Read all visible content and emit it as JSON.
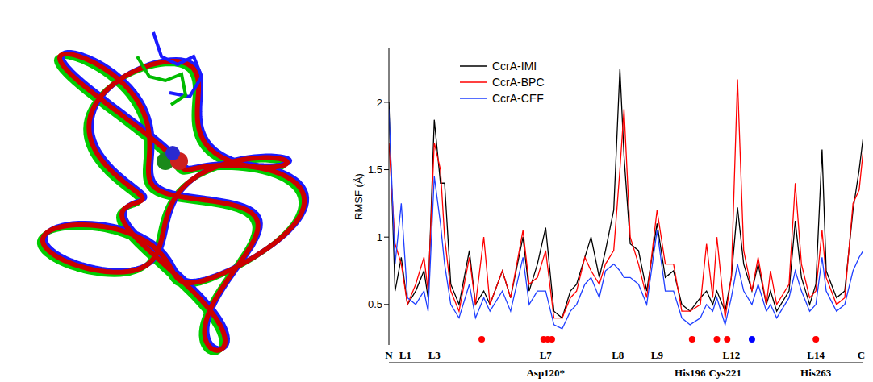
{
  "chart_data": {
    "type": "line",
    "y_label": "RMSF (Å)",
    "x": [
      0,
      3,
      6,
      9,
      13,
      17,
      19,
      22,
      25,
      27,
      30,
      34,
      39,
      42,
      46,
      49,
      55,
      59,
      65,
      68,
      72,
      76,
      80,
      84,
      88,
      91,
      95,
      98,
      102,
      105,
      109,
      112,
      114,
      117,
      121,
      125,
      130,
      134,
      138,
      142,
      146,
      151,
      154,
      157,
      159,
      163,
      166,
      169,
      172,
      176,
      179,
      183,
      185,
      188,
      194,
      197,
      200,
      204,
      207,
      210,
      212,
      217,
      221,
      225,
      228,
      230
    ],
    "series": [
      {
        "name": "CcrA-IMI",
        "color": "#000000",
        "values": [
          2.0,
          0.6,
          0.85,
          0.5,
          0.6,
          0.75,
          0.55,
          1.87,
          1.4,
          1.4,
          0.65,
          0.5,
          0.9,
          0.5,
          0.6,
          0.5,
          0.75,
          0.55,
          1.0,
          0.6,
          0.8,
          1.07,
          0.45,
          0.4,
          0.6,
          0.65,
          0.85,
          1.0,
          0.7,
          0.9,
          1.2,
          2.25,
          1.6,
          0.95,
          0.9,
          0.6,
          1.1,
          0.7,
          0.75,
          0.5,
          0.45,
          0.55,
          0.6,
          0.5,
          0.6,
          0.45,
          0.7,
          1.22,
          0.8,
          0.6,
          0.8,
          0.5,
          0.6,
          0.45,
          0.6,
          1.12,
          0.7,
          0.5,
          0.65,
          1.65,
          0.75,
          0.55,
          0.6,
          1.2,
          1.5,
          1.75
        ]
      },
      {
        "name": "CcrA-BPC",
        "color": "#ff0000",
        "values": [
          1.7,
          0.95,
          0.8,
          0.5,
          0.65,
          0.85,
          0.6,
          1.7,
          1.5,
          1.0,
          0.6,
          0.45,
          0.85,
          0.5,
          1.0,
          0.5,
          0.75,
          0.55,
          1.05,
          0.65,
          0.7,
          0.9,
          0.4,
          0.4,
          0.55,
          0.6,
          0.85,
          0.75,
          0.65,
          0.8,
          0.9,
          1.5,
          1.95,
          1.0,
          0.8,
          0.55,
          1.2,
          0.8,
          0.8,
          0.45,
          0.45,
          0.5,
          0.95,
          0.55,
          1.0,
          0.4,
          0.7,
          2.17,
          0.9,
          0.6,
          0.85,
          0.5,
          0.75,
          0.5,
          0.65,
          1.4,
          0.8,
          0.55,
          0.6,
          1.05,
          0.7,
          0.5,
          0.55,
          1.25,
          1.35,
          1.65
        ]
      },
      {
        "name": "CcrA-CEF",
        "color": "#1f3fff",
        "values": [
          1.95,
          0.8,
          1.25,
          0.55,
          0.5,
          0.6,
          0.45,
          1.45,
          1.1,
          0.8,
          0.5,
          0.4,
          0.65,
          0.4,
          0.55,
          0.45,
          0.6,
          0.45,
          0.85,
          0.5,
          0.6,
          0.6,
          0.35,
          0.32,
          0.45,
          0.5,
          0.65,
          0.7,
          0.55,
          0.75,
          0.8,
          0.75,
          0.7,
          0.7,
          0.65,
          0.5,
          1.05,
          0.6,
          0.6,
          0.4,
          0.35,
          0.4,
          0.5,
          0.45,
          0.55,
          0.35,
          0.55,
          0.8,
          0.6,
          0.5,
          0.65,
          0.45,
          0.5,
          0.4,
          0.55,
          0.75,
          0.6,
          0.45,
          0.5,
          0.85,
          0.6,
          0.45,
          0.5,
          0.75,
          0.85,
          0.9
        ]
      }
    ],
    "xlim": [
      0,
      230
    ],
    "xticks": [
      {
        "value": 0,
        "label": "N"
      },
      {
        "value": 8,
        "label": "L1"
      },
      {
        "value": 22,
        "label": "L3"
      },
      {
        "value": 76,
        "label": "L7"
      },
      {
        "value": 111,
        "label": "L8"
      },
      {
        "value": 130,
        "label": "L9"
      },
      {
        "value": 166,
        "label": "L12"
      },
      {
        "value": 207,
        "label": "L14"
      },
      {
        "value": 229,
        "label": "C"
      }
    ],
    "ylim": [
      0.2,
      2.4
    ],
    "yticks": [
      0.5,
      1,
      1.5,
      2
    ],
    "legend": "upper left",
    "annotations": [
      {
        "x": 76,
        "text": "Asp120*"
      },
      {
        "x": 146,
        "text": "His196"
      },
      {
        "x": 163,
        "text": "Cys221"
      },
      {
        "x": 207,
        "text": "His263"
      }
    ],
    "highlighted_residues": [
      {
        "x": 45,
        "color": "#ff0000"
      },
      {
        "x": 75,
        "color": "#ff0000"
      },
      {
        "x": 77,
        "color": "#ff0000"
      },
      {
        "x": 79,
        "color": "#ff0000"
      },
      {
        "x": 147,
        "color": "#ff0000"
      },
      {
        "x": 159,
        "color": "#ff0000"
      },
      {
        "x": 164,
        "color": "#ff0000"
      },
      {
        "x": 176,
        "color": "#0000ff"
      },
      {
        "x": 207,
        "color": "#ff0000"
      }
    ]
  }
}
